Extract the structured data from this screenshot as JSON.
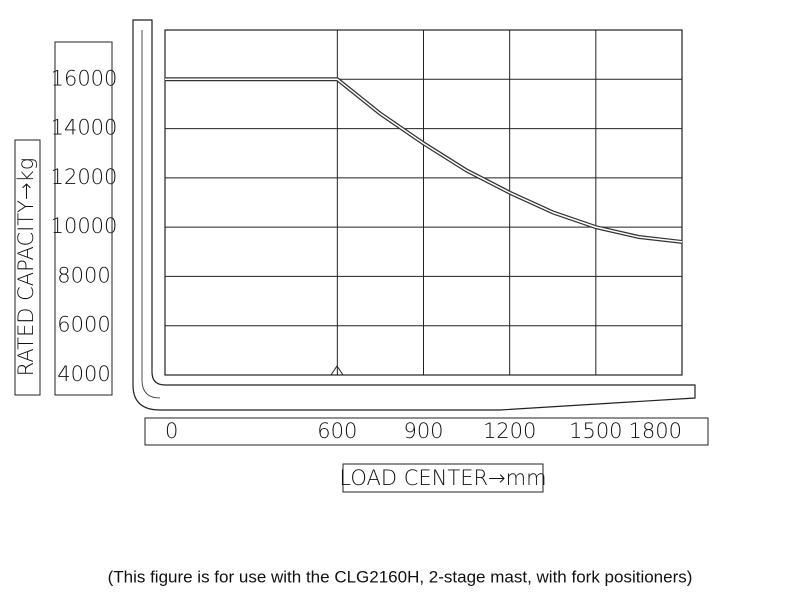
{
  "chart_data": {
    "type": "line",
    "ylabel": "RATED CAPACITY→kg",
    "xlabel": "LOAD CENTER→mm",
    "caption": "(This figure is for use with the CLG2160H, 2-stage mast, with fork positioners)",
    "x": [
      0,
      600,
      750,
      900,
      1050,
      1200,
      1350,
      1500,
      1650,
      1800
    ],
    "series": [
      {
        "color": "#333333",
        "values": [
          16000,
          16000,
          14600,
          13400,
          12300,
          11400,
          10600,
          10000,
          9600,
          9400
        ]
      }
    ],
    "xlim": [
      0,
      1800
    ],
    "xticks": [
      0,
      600,
      900,
      1200,
      1500,
      1800
    ],
    "ylim": [
      4000,
      18000
    ],
    "yticks": [
      4000,
      6000,
      8000,
      10000,
      12000,
      14000,
      16000
    ],
    "grid": true
  }
}
